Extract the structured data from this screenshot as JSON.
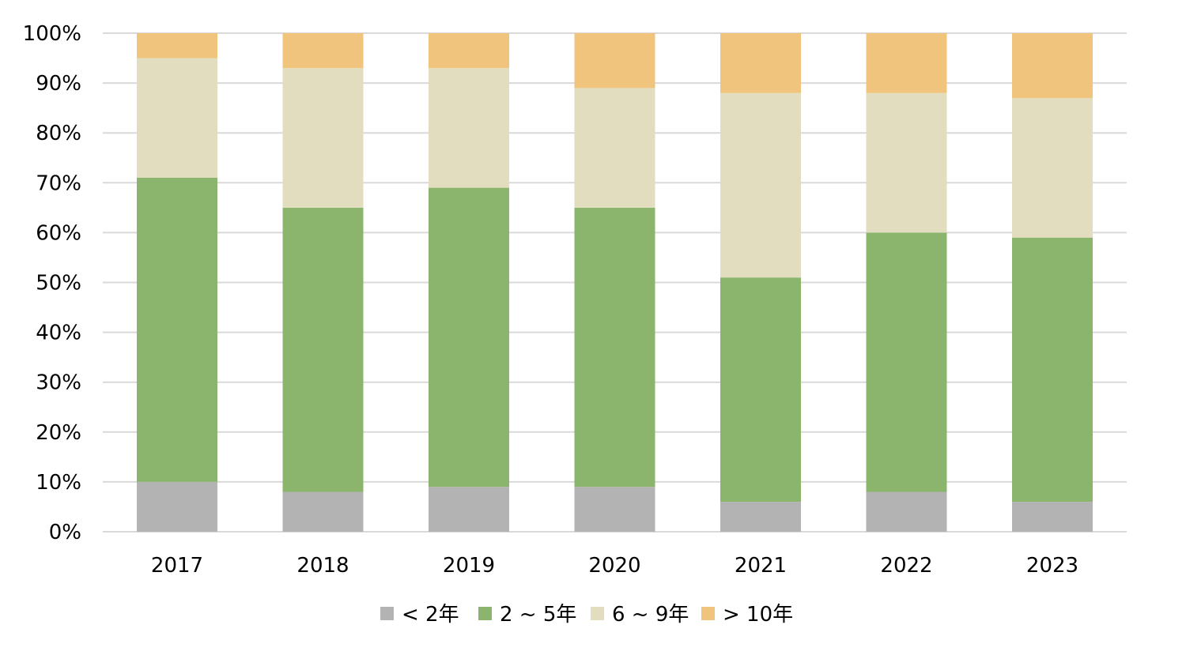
{
  "chart_data": {
    "type": "bar",
    "stacked": true,
    "categories": [
      "2017",
      "2018",
      "2019",
      "2020",
      "2021",
      "2022",
      "2023"
    ],
    "series": [
      {
        "name": "< 2年",
        "color": "#b3b3b3",
        "values": [
          10,
          8,
          9,
          9,
          6,
          8,
          6
        ]
      },
      {
        "name": "2 ~ 5年",
        "color": "#8bb56d",
        "values": [
          61,
          57,
          60,
          56,
          45,
          52,
          53
        ]
      },
      {
        "name": "6 ~ 9年",
        "color": "#e2ddbe",
        "values": [
          24,
          28,
          24,
          24,
          37,
          28,
          28
        ]
      },
      {
        "name": "> 10年",
        "color": "#f0c47d",
        "values": [
          5,
          7,
          7,
          11,
          12,
          12,
          13
        ]
      }
    ],
    "ylim": [
      0,
      100
    ],
    "yticks": [
      0,
      10,
      20,
      30,
      40,
      50,
      60,
      70,
      80,
      90,
      100
    ],
    "ytick_labels": [
      "0%",
      "10%",
      "20%",
      "30%",
      "40%",
      "50%",
      "60%",
      "70%",
      "80%",
      "90%",
      "100%"
    ],
    "grid": true,
    "grid_color": "#d9d9d9",
    "legend_position": "bottom",
    "title": "",
    "xlabel": "",
    "ylabel": ""
  }
}
